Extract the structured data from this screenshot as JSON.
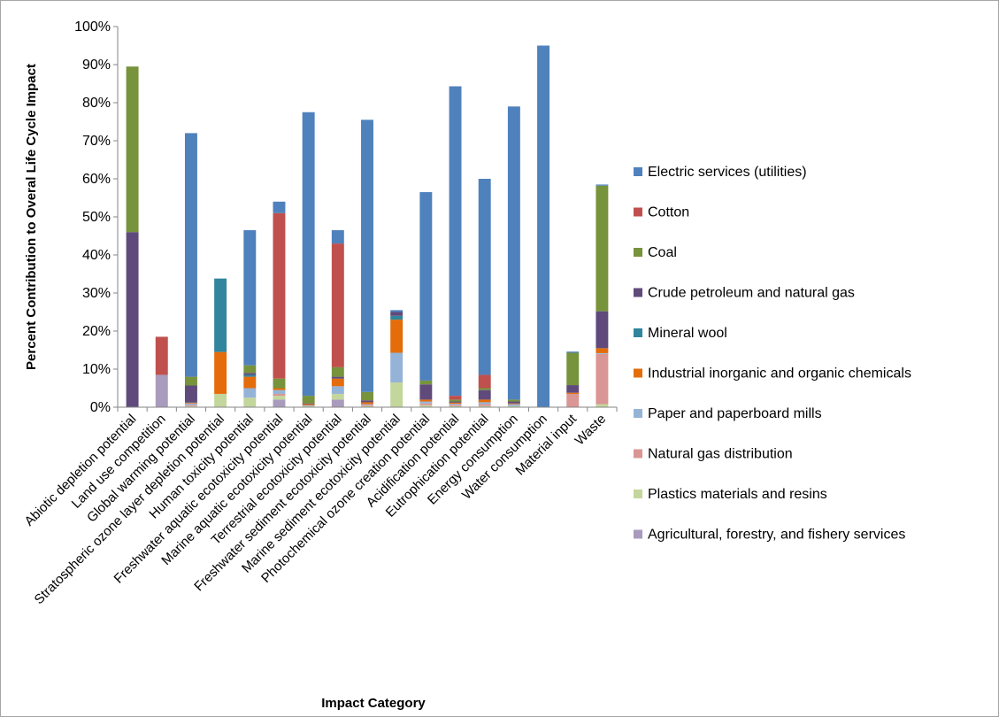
{
  "chart_data": {
    "type": "bar",
    "stacked": true,
    "title": "",
    "xlabel": "Impact Category",
    "ylabel": "Percent Contribution to Overal Life Cycle Impact",
    "ylim": [
      0,
      100
    ],
    "yticks": [
      "0%",
      "10%",
      "20%",
      "30%",
      "40%",
      "50%",
      "60%",
      "70%",
      "80%",
      "90%",
      "100%"
    ],
    "grid": false,
    "legend_position": "right",
    "categories": [
      "Abiotic depletion potential",
      "Land use competition",
      "Global warming potential",
      "Stratospheric ozone layer depletion potential",
      "Human toxicity potential",
      "Freshwater aquatic ecotoxicity potential",
      "Marine aquatic ecotoxicity potential",
      "Terrestrial ecotoxicity potential",
      "Freshwater sediment ecotoxicity potential",
      "Marine sediment ecotoxicity potential",
      "Photochemical ozone creation potential",
      "Acidification potential",
      "Eutrophication potential",
      "Energy consumption",
      "Water consumption",
      "Material input",
      "Waste"
    ],
    "series": [
      {
        "name": "Agricultural, forestry, and fishery services",
        "color": "#a99bbd",
        "values": [
          0,
          8.5,
          0,
          0,
          0,
          2,
          0,
          2,
          0,
          0,
          0,
          0,
          0,
          0,
          0,
          0,
          0
        ]
      },
      {
        "name": "Plastics materials and resins",
        "color": "#c3d69b",
        "values": [
          0,
          0,
          0.3,
          3.5,
          2.5,
          1,
          0.3,
          1.5,
          0.3,
          6.5,
          0.5,
          0.3,
          0.3,
          0.3,
          0,
          0,
          0.8
        ]
      },
      {
        "name": "Natural gas distribution",
        "color": "#d99694",
        "values": [
          0,
          0,
          0.3,
          0,
          0,
          0.5,
          0,
          0,
          0.3,
          0,
          0.5,
          0.3,
          0.5,
          0,
          0,
          3.5,
          13.2
        ]
      },
      {
        "name": "Paper and paperboard mills",
        "color": "#95b3d7",
        "values": [
          0,
          0,
          0.4,
          0,
          2.5,
          1,
          0.2,
          2,
          0.2,
          7.8,
          0.5,
          0.3,
          0.5,
          0.5,
          0,
          0,
          0.2
        ]
      },
      {
        "name": "Industrial inorganic and organic chemicals",
        "color": "#e46c0a",
        "values": [
          0,
          0,
          0.2,
          11,
          3,
          0.5,
          0.3,
          2,
          0.5,
          8.7,
          0.5,
          0.3,
          0.7,
          0.2,
          0,
          0.3,
          1.3
        ]
      },
      {
        "name": "Mineral wool",
        "color": "#31859c",
        "values": [
          0,
          0,
          0,
          19.3,
          0.5,
          0,
          0,
          0,
          0,
          1,
          0,
          0,
          0,
          0,
          0,
          0,
          0
        ]
      },
      {
        "name": "Crude petroleum and natural gas",
        "color": "#604a7b",
        "values": [
          46,
          0,
          4.5,
          0,
          0.5,
          0,
          0.2,
          0.5,
          0.5,
          1,
          4,
          0.3,
          2.5,
          0.5,
          0,
          2,
          9.7
        ]
      },
      {
        "name": "Coal",
        "color": "#77933c",
        "values": [
          43.5,
          0,
          2.3,
          0,
          2,
          2.5,
          2,
          2.5,
          2.2,
          0,
          1,
          0.5,
          0.5,
          0.5,
          0,
          8.5,
          33
        ]
      },
      {
        "name": "Cotton",
        "color": "#c0504d",
        "values": [
          0,
          10,
          0,
          0,
          0,
          43.5,
          0,
          32.5,
          0,
          0,
          0,
          1,
          3.5,
          0,
          0,
          0,
          0
        ]
      },
      {
        "name": "Electric services (utilities)",
        "color": "#4f81bd",
        "values": [
          0,
          0,
          64,
          0,
          35.5,
          3,
          74.5,
          3.5,
          71.5,
          0.5,
          49.5,
          81.3,
          51.5,
          77,
          95,
          0.3,
          0.3
        ]
      }
    ],
    "legend_order": [
      "Electric services (utilities)",
      "Cotton",
      "Coal",
      "Crude petroleum and natural gas",
      "Mineral wool",
      "Industrial inorganic and organic chemicals",
      "Paper and paperboard mills",
      "Natural gas distribution",
      "Plastics materials and resins",
      "Agricultural, forestry, and fishery services"
    ]
  }
}
